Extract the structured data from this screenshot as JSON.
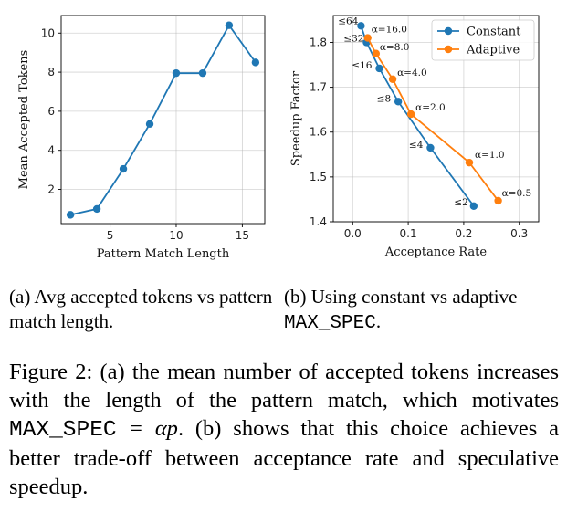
{
  "chart_data": [
    {
      "type": "line",
      "xlabel": "Pattern Match Length",
      "ylabel": "Mean Accepted Tokens",
      "xlim": [
        1.3,
        16.7
      ],
      "ylim": [
        0.25,
        10.9
      ],
      "xticks": [
        5,
        10,
        15
      ],
      "yticks": [
        2,
        4,
        6,
        8,
        10
      ],
      "grid": true,
      "color": "#1f77b4",
      "series": [
        {
          "x": [
            2,
            4,
            6,
            8,
            10,
            12,
            14,
            16
          ],
          "y": [
            0.7,
            1.0,
            3.05,
            5.35,
            7.95,
            7.95,
            10.4,
            8.5
          ]
        }
      ]
    },
    {
      "type": "line",
      "xlabel": "Acceptance Rate",
      "ylabel": "Speedup Factor",
      "xlim": [
        -0.035,
        0.335
      ],
      "ylim": [
        1.4,
        1.86
      ],
      "xticks": [
        "0.0",
        "0.1",
        "0.2",
        "0.3"
      ],
      "yticks": [
        "1.4",
        "1.5",
        "1.6",
        "1.7",
        "1.8"
      ],
      "grid": true,
      "legend": "top-right",
      "series": [
        {
          "name": "Constant",
          "color": "#1f77b4",
          "x": [
            0.015,
            0.025,
            0.048,
            0.082,
            0.14,
            0.218
          ],
          "y": [
            1.837,
            1.8,
            1.742,
            1.668,
            1.565,
            1.435
          ],
          "labels": [
            "≤64",
            "≤32",
            "≤16",
            "≤8",
            "≤4",
            "≤2"
          ]
        },
        {
          "name": "Adaptive",
          "color": "#ff7f0e",
          "x": [
            0.027,
            0.042,
            0.072,
            0.105,
            0.21,
            0.262
          ],
          "y": [
            1.81,
            1.775,
            1.718,
            1.64,
            1.532,
            1.447
          ],
          "labels": [
            "α=16.0",
            "α=8.0",
            "α=4.0",
            "α=2.0",
            "α=1.0",
            "α=0.5"
          ]
        }
      ]
    }
  ],
  "captions": {
    "a": "(a) Avg accepted tokens vs pattern match length.",
    "b_prefix": "(b) Using constant vs adaptive ",
    "b_code": "MAX_SPEC",
    "b_suffix": ".",
    "figure_prefix": "Figure 2: (a) the mean number of accepted tokens increases with the length of the pattern match, which motivates ",
    "figure_code": "MAX_SPEC",
    "figure_math": " = αp",
    "figure_suffix": ". (b) shows that this choice achieves a better trade-off between acceptance rate and speculative speedup."
  }
}
